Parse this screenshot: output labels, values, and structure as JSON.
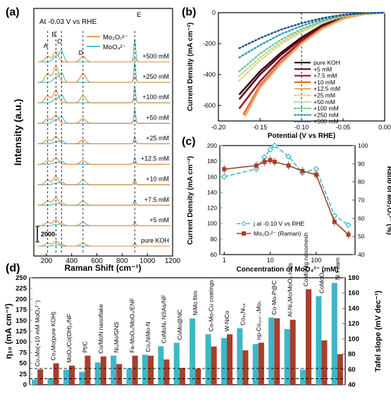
{
  "colors": {
    "orange": "#E0893A",
    "teal": "#3BB8C9",
    "brown": "#A5402A",
    "darkred": "#5B0A1C"
  },
  "chart_data": [
    {
      "panel": "(a)",
      "type": "line",
      "annotation": "At -0.03 V vs RHE",
      "xlabel": "Raman Shift (cm⁻¹)",
      "ylabel": "Intensity (a.u.)",
      "xlim": [
        100,
        1200
      ],
      "xticks": [
        "200",
        "400",
        "600",
        "800",
        "1000",
        "1200"
      ],
      "legend": [
        "Mo₂O₇²⁻",
        "MoO₄²⁻"
      ],
      "peak_labels": [
        "A",
        "B",
        "C",
        "D",
        "E"
      ],
      "peak_positions": [
        210,
        275,
        320,
        490,
        900
      ],
      "traces": [
        "+500 mM",
        "+250 mM",
        "+100 mM",
        "+50 mM",
        "+25 mM",
        "+12.5 mM",
        "+10 mM",
        "+7.5 mM",
        "+5 mM",
        "pure KOH"
      ],
      "scale_bar": "2000",
      "mo2o7_peak_height": [
        0.6,
        0.95,
        0.75,
        0.5,
        0.45,
        0.4,
        0.5,
        0.45,
        0.35,
        0.3
      ],
      "moo4_peak_height": [
        1.0,
        0.85,
        0.7,
        0.6,
        0.3,
        0.28,
        0.25,
        0.22,
        0.18,
        0.15
      ]
    },
    {
      "panel": "(b)",
      "type": "line",
      "xlabel": "Potential (V vs RHE)",
      "ylabel": "Current Density (mA cm⁻²)",
      "xlim": [
        -0.2,
        0.0
      ],
      "ylim": [
        -700,
        0
      ],
      "xticks": [
        "-0.20",
        "-0.15",
        "-0.10",
        "-0.05",
        "0.00"
      ],
      "yticks": [
        "0",
        "-200",
        "-400",
        "-600"
      ],
      "legend_position": "bottom-right",
      "series": [
        {
          "name": "pure KOH",
          "style": "solid",
          "color": "#3A0A1C",
          "x": [
            -0.175,
            -0.15,
            -0.125,
            -0.1,
            -0.075,
            -0.05,
            -0.025,
            0
          ],
          "y": [
            -530,
            -380,
            -260,
            -160,
            -80,
            -30,
            -8,
            0
          ]
        },
        {
          "name": "+5 mM",
          "style": "solid",
          "color": "#5B0A1C",
          "x": [
            -0.175,
            -0.15,
            -0.125,
            -0.1,
            -0.075,
            -0.05,
            -0.025,
            0
          ],
          "y": [
            -560,
            -400,
            -275,
            -170,
            -85,
            -32,
            -8,
            0
          ]
        },
        {
          "name": "+7.5 mM",
          "style": "solid",
          "color": "#A01A2A",
          "x": [
            -0.175,
            -0.15,
            -0.125,
            -0.1,
            -0.075,
            -0.05,
            -0.025,
            0
          ],
          "y": [
            -620,
            -445,
            -300,
            -185,
            -95,
            -35,
            -9,
            0
          ]
        },
        {
          "name": "+10 mM",
          "style": "solid",
          "color": "#E0702A",
          "x": [
            -0.17,
            -0.15,
            -0.125,
            -0.1,
            -0.075,
            -0.05,
            -0.025,
            0
          ],
          "y": [
            -660,
            -470,
            -320,
            -195,
            -100,
            -38,
            -10,
            0
          ]
        },
        {
          "name": "+12.5 mM",
          "style": "solid",
          "color": "#F0A868",
          "x": [
            -0.168,
            -0.15,
            -0.125,
            -0.1,
            -0.075,
            -0.05,
            -0.025,
            0
          ],
          "y": [
            -670,
            -485,
            -330,
            -200,
            -104,
            -40,
            -10,
            0
          ]
        },
        {
          "name": "+25 mM",
          "style": "dotted",
          "color": "#E7D07A",
          "x": [
            -0.175,
            -0.15,
            -0.125,
            -0.1,
            -0.075,
            -0.05,
            -0.025,
            0
          ],
          "y": [
            -440,
            -310,
            -205,
            -125,
            -65,
            -25,
            -6,
            0
          ]
        },
        {
          "name": "+50 mM",
          "style": "dotted",
          "color": "#B7D98C",
          "x": [
            -0.175,
            -0.15,
            -0.125,
            -0.1,
            -0.075,
            -0.05,
            -0.025,
            0
          ],
          "y": [
            -410,
            -290,
            -190,
            -115,
            -60,
            -22,
            -6,
            0
          ]
        },
        {
          "name": "+100 mM",
          "style": "dotted",
          "color": "#6CC6A6",
          "x": [
            -0.175,
            -0.15,
            -0.125,
            -0.1,
            -0.075,
            -0.05,
            -0.025,
            0
          ],
          "y": [
            -380,
            -265,
            -175,
            -105,
            -55,
            -20,
            -5,
            0
          ]
        },
        {
          "name": "+250 mM",
          "style": "dotted",
          "color": "#2E9AA8",
          "x": [
            -0.175,
            -0.15,
            -0.125,
            -0.1,
            -0.075,
            -0.05,
            -0.025,
            0
          ],
          "y": [
            -290,
            -210,
            -140,
            -85,
            -45,
            -17,
            -4,
            0
          ]
        },
        {
          "name": "+500 mM",
          "style": "dotted",
          "color": "#1F4E8C",
          "x": [
            -0.175,
            -0.15,
            -0.125,
            -0.1,
            -0.075,
            -0.05,
            -0.025,
            0
          ],
          "y": [
            -230,
            -165,
            -110,
            -68,
            -35,
            -13,
            -3,
            0
          ]
        }
      ]
    },
    {
      "panel": "(c)",
      "type": "line",
      "xlabel": "Concentration of MoO₄²⁻ (mM)",
      "ylabel_left": "Current Density (mA cm⁻²)",
      "ylabel_right": "Ratio of Mo₂O₇²⁻ (%)",
      "x_scale": "log",
      "xlim": [
        0.8,
        700
      ],
      "xticks": [
        "1",
        "10",
        "100",
        "1000"
      ],
      "ylim_left": [
        60,
        200
      ],
      "yticks_left": [
        "60",
        "80",
        "100",
        "120",
        "140",
        "160",
        "180",
        "200"
      ],
      "ylim_right": [
        40,
        100
      ],
      "yticks_right": [
        "40",
        "50",
        "60",
        "70",
        "80",
        "90",
        "100"
      ],
      "series": [
        {
          "name": "j at -0.10 V vs RHE",
          "axis": "left",
          "style": "dashed",
          "color": "#3BB8C9",
          "x": [
            1,
            5,
            7.5,
            10,
            12.5,
            25,
            50,
            100,
            250,
            500
          ],
          "y": [
            160,
            170,
            185,
            195,
            200,
            186,
            165,
            170,
            110,
            98
          ]
        },
        {
          "name": "Mo₂O₇²⁻ (Raman)",
          "axis": "right",
          "style": "solid",
          "color": "#A5402A",
          "x": [
            1,
            5,
            7.5,
            10,
            12.5,
            25,
            50,
            100,
            250,
            500
          ],
          "y": [
            87,
            89,
            91,
            92,
            91,
            89,
            86,
            84,
            58,
            51
          ]
        }
      ],
      "legend": [
        "j at -0.10 V vs RHE",
        "Mo₂O₇²⁻ (Raman)"
      ]
    },
    {
      "panel": "(d)",
      "type": "bar",
      "ylabel_left": "η₁₀ (mA cm⁻²)",
      "ylabel_right": "Tafel slope (mV dec⁻¹)",
      "ylim_left": [
        0,
        250
      ],
      "yticks_left": [
        "0",
        "25",
        "50",
        "75",
        "100",
        "125",
        "150",
        "175",
        "200",
        "225",
        "250"
      ],
      "ylim_right": [
        40,
        180
      ],
      "yticks_right": [
        "40",
        "60",
        "80",
        "100",
        "120",
        "140",
        "160",
        "180"
      ],
      "categories": [
        "Co₃Mo(+10 mM MoO₄²⁻)",
        "Co₃Mo(pure KOH)",
        "MoOₓ/Co(OH)₂/NF",
        "Pt/C",
        "Co/MoN nanoflake",
        "Ni₄Mo/GNS",
        "Fe-MoO₂/MoO₃/ENF",
        "Co₂NiMo-N",
        "CoMoNₓ NSAs/NF",
        "CoMo@NC",
        "NiMo film",
        "Co-Mo-Cu coatings",
        "W-NiCo",
        "Co₈₁Ni₁₉",
        "np-Co₁₀₀₋ₓMoₓ",
        "Co-Mo-P@C",
        "Al-Ni₄Mo/MoO₄ rods",
        "CoMoMg nanomesh",
        "CoMoO₄",
        "Ni Foam"
      ],
      "category_colors": [
        "#D62728",
        "#D62728",
        "#000000",
        "#000000",
        "#000000",
        "#000000",
        "#000000",
        "#000000",
        "#000000",
        "#000000",
        "#000000",
        "#000000",
        "#000000",
        "#000000",
        "#000000",
        "#000000",
        "#000000",
        "#000000",
        "#000000",
        "#000000"
      ],
      "series": [
        {
          "name": "η₁₀",
          "axis": "left",
          "color": "#3BB8C9",
          "values": [
            12,
            15,
            35,
            30,
            52,
            68,
            38,
            70,
            90,
            98,
            155,
            118,
            109,
            132,
            95,
            157,
            130,
            35,
            207,
            238
          ]
        },
        {
          "name": "Tafel slope",
          "axis": "right",
          "color": "#A5402A",
          "values": [
            60,
            68,
            65,
            78,
            77,
            67,
            78,
            78,
            73,
            62,
            61,
            90,
            106,
            85,
            95,
            127,
            125,
            165,
            98,
            80
          ]
        }
      ],
      "reference_lines_left": [
        38,
        14
      ]
    }
  ],
  "labels": {
    "a": "(a)",
    "b": "(b)",
    "c": "(c)",
    "d": "(d)",
    "a_annotation": "At -0.03 V vs RHE",
    "a_legend_1": "Mo₂O₇²⁻",
    "a_legend_2": "MoO₄²⁻",
    "a_scale_bar": "2000"
  }
}
